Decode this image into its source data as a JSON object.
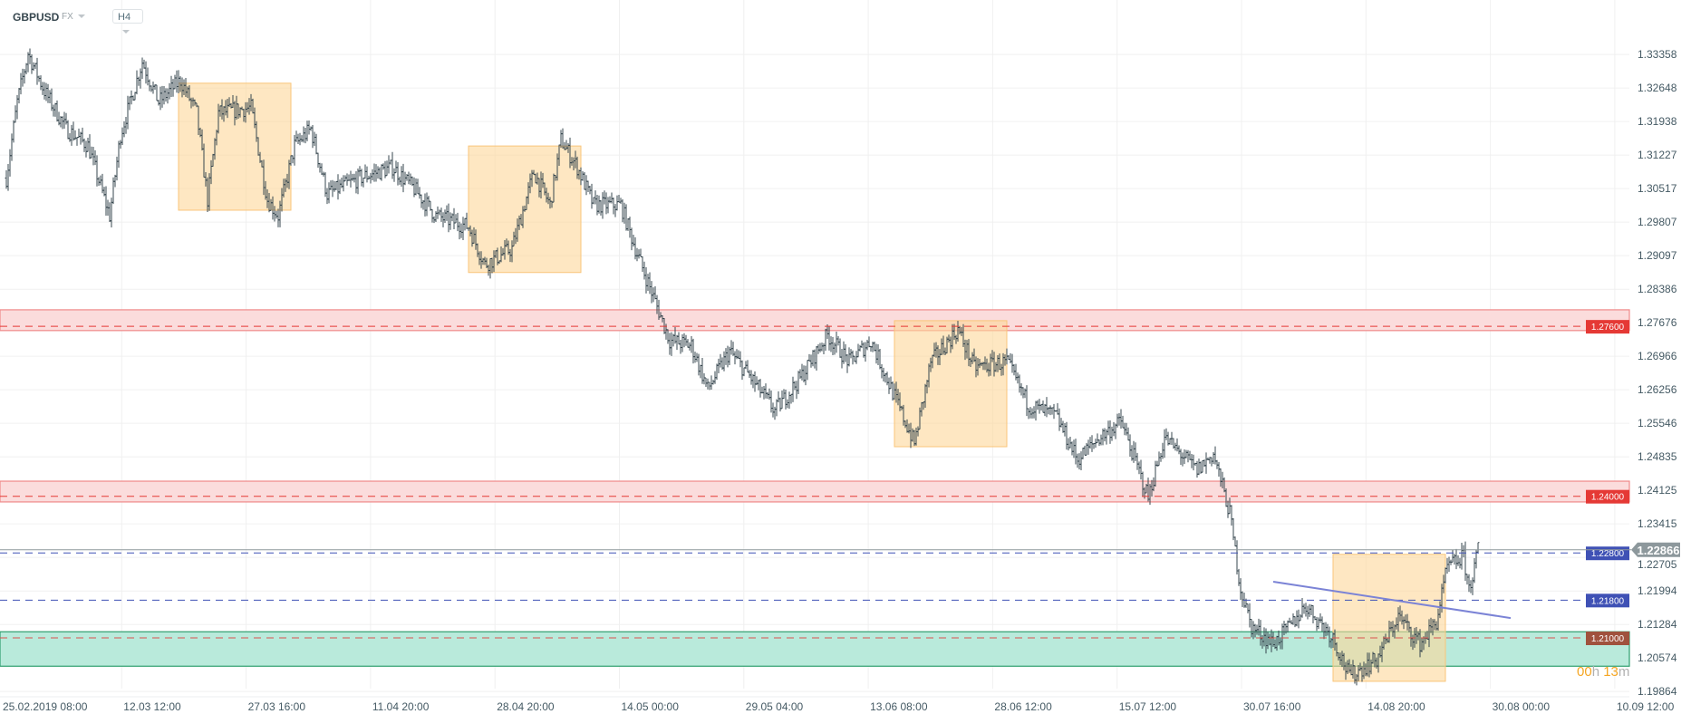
{
  "header": {
    "symbol": "GBPUSD",
    "market": "FX",
    "timeframe": "H4"
  },
  "timer": {
    "hours": "00",
    "h": "h",
    "minutes": "13",
    "m": "m"
  },
  "colors": {
    "bar": "#37474f",
    "red": "#e53935",
    "blue": "#3f51b5",
    "green": "#2e9e6e",
    "box": "#fdd79a",
    "current": "#8d989c"
  },
  "chart_data": {
    "type": "ohlc",
    "title": "GBPUSD H4",
    "y_ticks": [
      "1.33358",
      "1.32648",
      "1.31938",
      "1.31227",
      "1.30517",
      "1.29807",
      "1.29097",
      "1.28386",
      "1.27676",
      "1.26966",
      "1.26256",
      "1.25546",
      "1.24835",
      "1.24125",
      "1.23415",
      "1.22705",
      "1.21994",
      "1.21284",
      "1.20574",
      "1.19864"
    ],
    "x_ticks": [
      "25.02.2019  08:00",
      "12.03  12:00",
      "27.03  16:00",
      "11.04  20:00",
      "28.04  20:00",
      "14.05  00:00",
      "29.05  04:00",
      "13.06  08:00",
      "28.06  12:00",
      "15.07  12:00",
      "30.07  16:00",
      "14.08  20:00",
      "30.08  00:00",
      "10.09  12:00"
    ],
    "ylim": [
      1.1975,
      1.337
    ],
    "price_path": [
      [
        3,
        1.3074
      ],
      [
        9,
        1.3235
      ],
      [
        15,
        1.3338
      ],
      [
        24,
        1.3258
      ],
      [
        36,
        1.3178
      ],
      [
        48,
        1.3143
      ],
      [
        60,
        1.2994
      ],
      [
        66,
        1.3166
      ],
      [
        78,
        1.332
      ],
      [
        87,
        1.3235
      ],
      [
        99,
        1.3281
      ],
      [
        108,
        1.3212
      ],
      [
        114,
        1.3028
      ],
      [
        120,
        1.3212
      ],
      [
        138,
        1.3223
      ],
      [
        147,
        1.3028
      ],
      [
        153,
        1.2994
      ],
      [
        162,
        1.3143
      ],
      [
        171,
        1.3178
      ],
      [
        180,
        1.304
      ],
      [
        198,
        1.3074
      ],
      [
        216,
        1.3097
      ],
      [
        228,
        1.3051
      ],
      [
        240,
        1.2994
      ],
      [
        258,
        1.2971
      ],
      [
        267,
        1.2891
      ],
      [
        282,
        1.2925
      ],
      [
        294,
        1.3086
      ],
      [
        303,
        1.3017
      ],
      [
        309,
        1.3155
      ],
      [
        318,
        1.3097
      ],
      [
        327,
        1.3017
      ],
      [
        342,
        1.3017
      ],
      [
        351,
        1.2914
      ],
      [
        360,
        1.2822
      ],
      [
        369,
        1.273
      ],
      [
        381,
        1.2719
      ],
      [
        390,
        1.2627
      ],
      [
        402,
        1.2707
      ],
      [
        414,
        1.265
      ],
      [
        427,
        1.2581
      ],
      [
        441,
        1.265
      ],
      [
        456,
        1.2742
      ],
      [
        468,
        1.2684
      ],
      [
        480,
        1.273
      ],
      [
        495,
        1.2593
      ],
      [
        504,
        1.2512
      ],
      [
        513,
        1.2684
      ],
      [
        528,
        1.2753
      ],
      [
        537,
        1.2673
      ],
      [
        555,
        1.2684
      ],
      [
        567,
        1.2593
      ],
      [
        582,
        1.257
      ],
      [
        594,
        1.2478
      ],
      [
        606,
        1.2524
      ],
      [
        618,
        1.2558
      ],
      [
        633,
        1.2398
      ],
      [
        642,
        1.2524
      ],
      [
        660,
        1.2455
      ],
      [
        669,
        1.249
      ],
      [
        678,
        1.2364
      ],
      [
        684,
        1.2203
      ],
      [
        690,
        1.2123
      ],
      [
        702,
        1.2088
      ],
      [
        711,
        1.2123
      ],
      [
        720,
        1.2169
      ],
      [
        735,
        1.21
      ],
      [
        744,
        1.2019
      ],
      [
        759,
        1.2054
      ],
      [
        771,
        1.2146
      ],
      [
        783,
        1.2088
      ],
      [
        792,
        1.2134
      ],
      [
        798,
        1.2249
      ],
      [
        807,
        1.2272
      ],
      [
        810,
        1.2203
      ],
      [
        813,
        1.2249
      ],
      [
        815,
        1.2287
      ]
    ],
    "levels": [
      {
        "label": "1.27600",
        "price": 1.276,
        "color": "#e53935",
        "zone": [
          1.2751,
          1.2795
        ]
      },
      {
        "label": "1.24000",
        "price": 1.24,
        "color": "#e53935",
        "zone": [
          1.2388,
          1.2432
        ]
      },
      {
        "label": "1.22800",
        "price": 1.228,
        "color": "#3f51b5"
      },
      {
        "label": "1.21800",
        "price": 1.218,
        "color": "#3f51b5"
      },
      {
        "label": "1.21000",
        "price": 1.21,
        "color": "#a0523d",
        "zone": [
          1.204,
          1.2113
        ],
        "zone_color": "green"
      }
    ],
    "current_price": {
      "label": "1.22866",
      "price": 1.22866
    },
    "boxes": [
      {
        "bars": [
          98,
          160
        ],
        "prices": [
          1.3006,
          1.3275
        ]
      },
      {
        "bars": [
          258,
          320
        ],
        "prices": [
          1.2874,
          1.3142
        ]
      },
      {
        "bars": [
          493,
          555
        ],
        "prices": [
          1.2505,
          1.2772
        ]
      },
      {
        "bars": [
          735,
          797
        ],
        "prices": [
          1.2008,
          1.2277
        ]
      }
    ],
    "trendline": {
      "bars": [
        702,
        833
      ],
      "prices": [
        1.2219,
        1.2142
      ]
    }
  }
}
